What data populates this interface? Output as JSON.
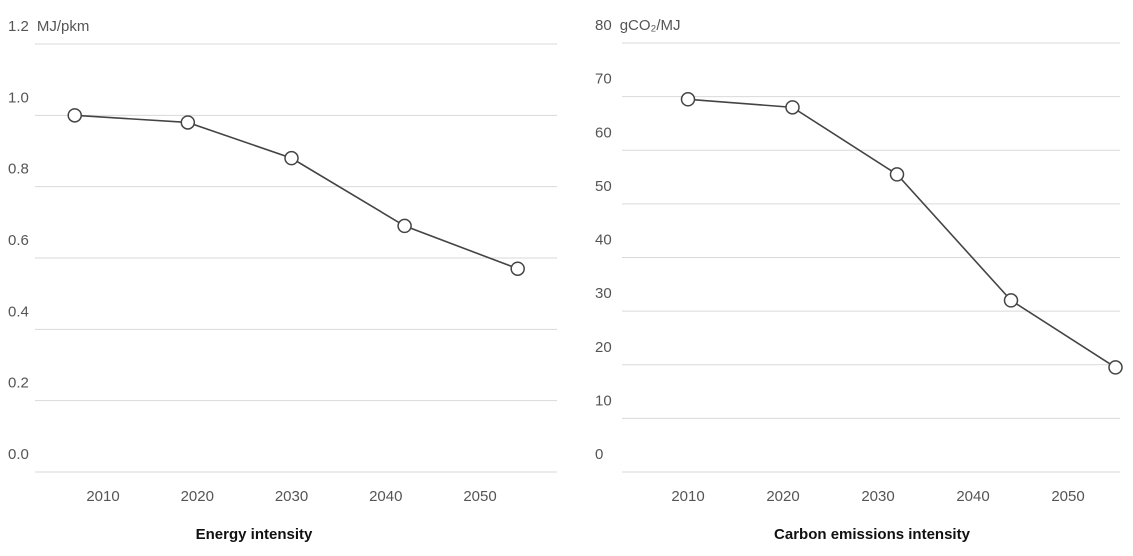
{
  "chart_data": [
    {
      "type": "line",
      "title": "Energy intensity",
      "unit": "MJ/pkm",
      "ylim": [
        0,
        1.2
      ],
      "yticks": [
        "0.0",
        "0.2",
        "0.4",
        "0.6",
        "0.8",
        "1.0",
        "1.2"
      ],
      "xticks": [
        "2010",
        "2020",
        "2030",
        "2040",
        "2050"
      ],
      "x": [
        2007,
        2019,
        2030,
        2042,
        2054
      ],
      "values": [
        1.0,
        0.98,
        0.88,
        0.69,
        0.57
      ],
      "grid": true,
      "line_color": "#444444"
    },
    {
      "type": "line",
      "title": "Carbon emissions intensity",
      "unit": "gCO₂/MJ",
      "ylim": [
        0,
        80
      ],
      "yticks": [
        "0",
        "10",
        "20",
        "30",
        "40",
        "50",
        "60",
        "70",
        "80"
      ],
      "xticks": [
        "2010",
        "2020",
        "2030",
        "2040",
        "2050"
      ],
      "x": [
        2010,
        2021,
        2032,
        2044,
        2055
      ],
      "values": [
        69.5,
        68,
        55.5,
        32,
        19.5
      ],
      "grid": true,
      "line_color": "#444444"
    }
  ]
}
